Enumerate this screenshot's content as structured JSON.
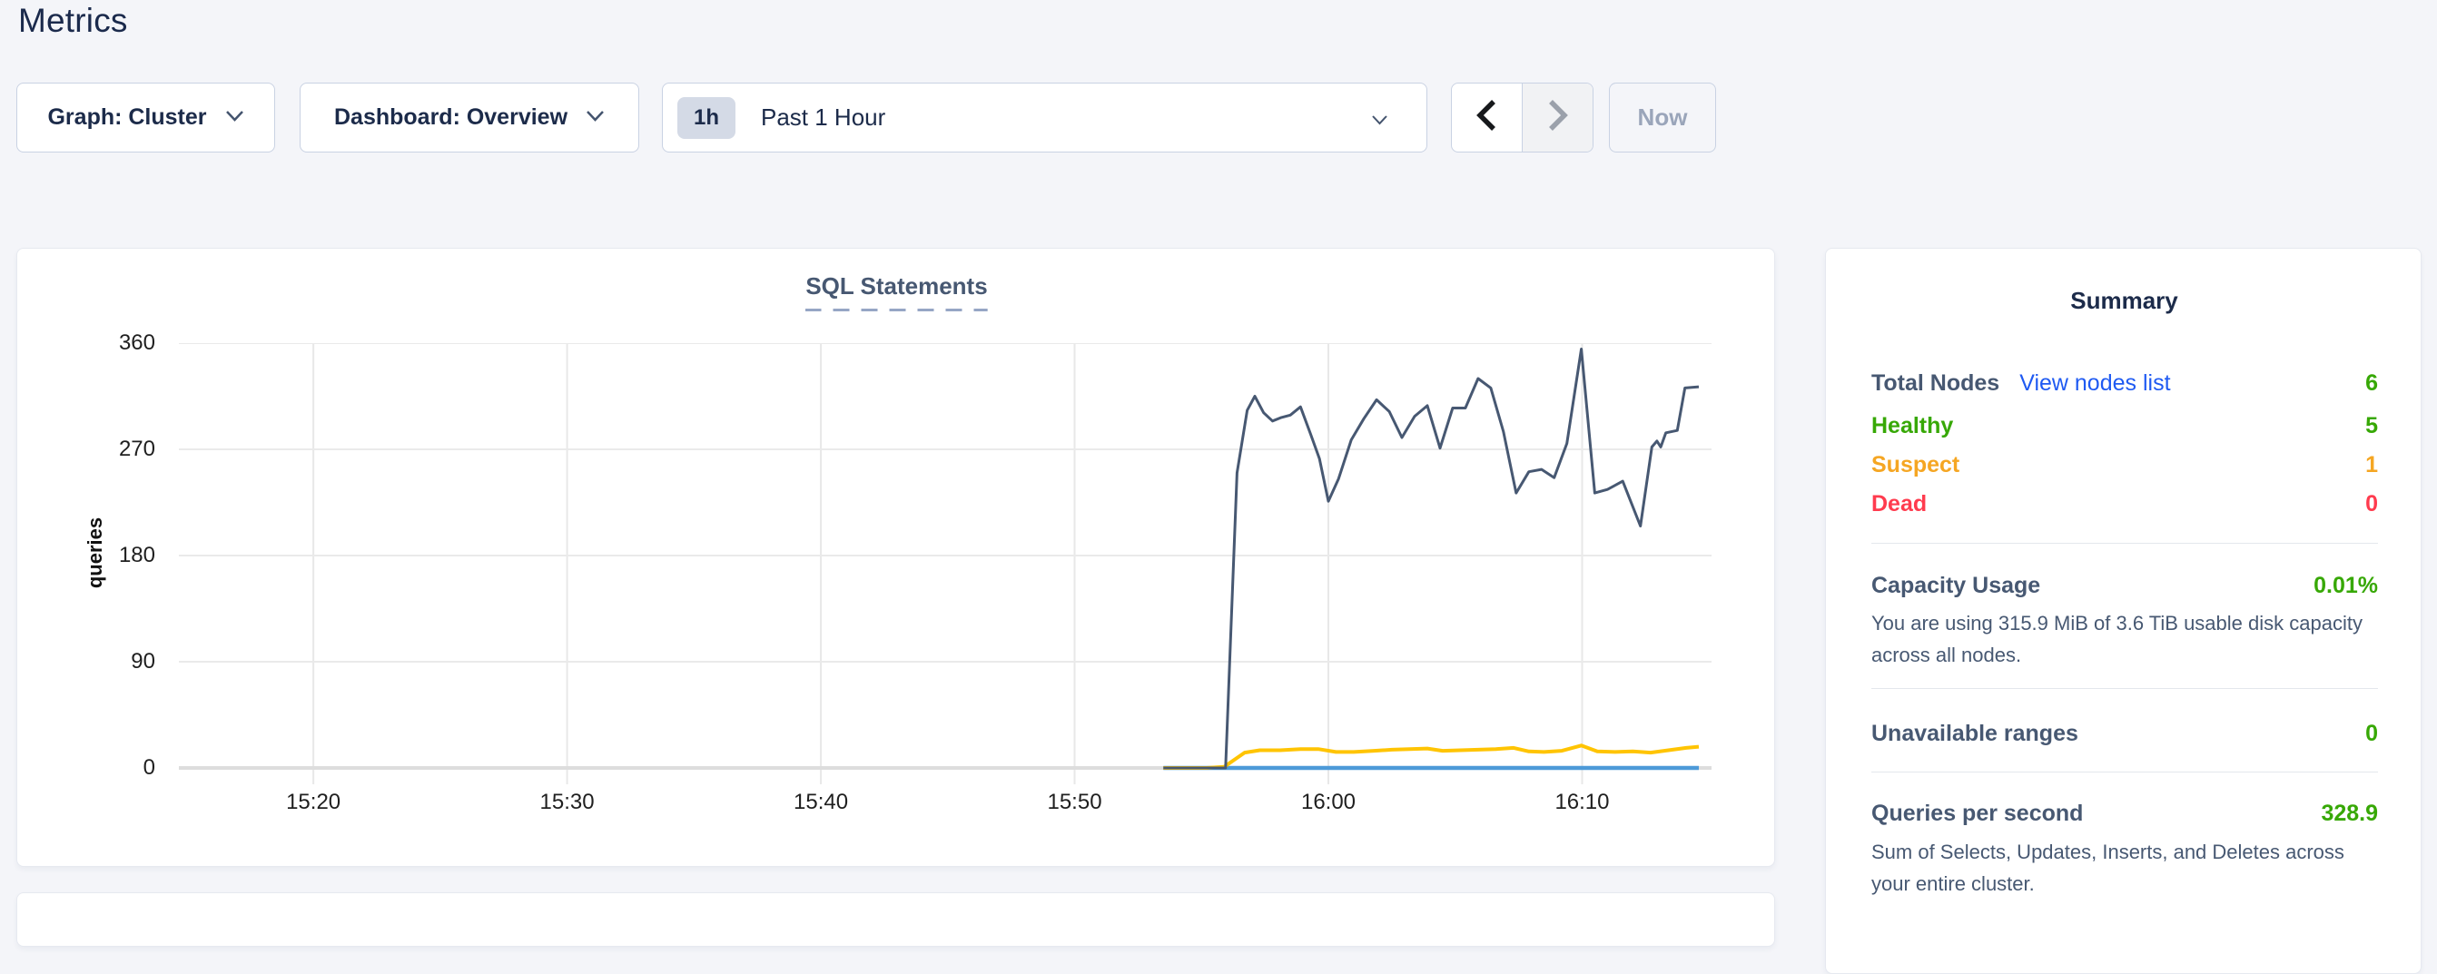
{
  "page": {
    "title": "Metrics"
  },
  "toolbar": {
    "graph_dropdown": {
      "label": "Graph: Cluster"
    },
    "dashboard_dropdown": {
      "label": "Dashboard: Overview"
    },
    "time_window": {
      "badge": "1h",
      "label": "Past 1 Hour"
    },
    "now_button": {
      "label": "Now"
    }
  },
  "chart_data": {
    "type": "line",
    "title": "SQL Statements",
    "ylabel": "queries",
    "xlabel": "",
    "grid": true,
    "legend": "none",
    "ylim": [
      0,
      360
    ],
    "y_ticks": [
      {
        "v": 0,
        "label": "0"
      },
      {
        "v": 90,
        "label": "90"
      },
      {
        "v": 180,
        "label": "180"
      },
      {
        "v": 270,
        "label": "270"
      },
      {
        "v": 360,
        "label": "360"
      }
    ],
    "x_domain_minutes_after_15_00": [
      14.7,
      75.1
    ],
    "x_ticks": [
      {
        "m": 20,
        "label": "15:20"
      },
      {
        "m": 30,
        "label": "15:30"
      },
      {
        "m": 40,
        "label": "15:40"
      },
      {
        "m": 50,
        "label": "15:50"
      },
      {
        "m": 60,
        "label": "16:00"
      },
      {
        "m": 70,
        "label": "16:10"
      }
    ],
    "series": [
      {
        "name": "navy-line",
        "color": "#475872",
        "stroke_width": 3,
        "points": [
          [
            53.5,
            0
          ],
          [
            54.3,
            0
          ],
          [
            55.1,
            0
          ],
          [
            55.95,
            0
          ],
          [
            56.4,
            250
          ],
          [
            56.8,
            303
          ],
          [
            57.1,
            315
          ],
          [
            57.45,
            301
          ],
          [
            57.8,
            294
          ],
          [
            58.15,
            297
          ],
          [
            58.5,
            299
          ],
          [
            58.9,
            306
          ],
          [
            59.3,
            283
          ],
          [
            59.65,
            262
          ],
          [
            60.0,
            226
          ],
          [
            60.4,
            245
          ],
          [
            60.9,
            278
          ],
          [
            61.4,
            296
          ],
          [
            61.9,
            312
          ],
          [
            62.4,
            302
          ],
          [
            62.9,
            280
          ],
          [
            63.4,
            298
          ],
          [
            63.9,
            307
          ],
          [
            64.4,
            271
          ],
          [
            64.9,
            305
          ],
          [
            65.4,
            305
          ],
          [
            65.9,
            330
          ],
          [
            66.4,
            322
          ],
          [
            66.9,
            285
          ],
          [
            67.4,
            233
          ],
          [
            67.9,
            251
          ],
          [
            68.4,
            253
          ],
          [
            68.9,
            246
          ],
          [
            69.4,
            275
          ],
          [
            69.97,
            355
          ],
          [
            70.5,
            233
          ],
          [
            71.0,
            236
          ],
          [
            71.6,
            243
          ],
          [
            72.3,
            205
          ],
          [
            72.75,
            272
          ],
          [
            72.95,
            277
          ],
          [
            73.1,
            272
          ],
          [
            73.3,
            284
          ],
          [
            73.75,
            286
          ],
          [
            74.05,
            322
          ],
          [
            74.6,
            323
          ]
        ]
      },
      {
        "name": "yellow-line",
        "color": "#ffc402",
        "stroke_width": 4,
        "points": [
          [
            53.5,
            0
          ],
          [
            54.3,
            0
          ],
          [
            55.2,
            0
          ],
          [
            55.9,
            1
          ],
          [
            56.3,
            7
          ],
          [
            56.7,
            13
          ],
          [
            57.3,
            15
          ],
          [
            58.1,
            15
          ],
          [
            58.9,
            16
          ],
          [
            59.6,
            16
          ],
          [
            60.3,
            13.5
          ],
          [
            61.0,
            13.5
          ],
          [
            61.8,
            14.5
          ],
          [
            62.5,
            15.5
          ],
          [
            63.2,
            16
          ],
          [
            63.9,
            16.5
          ],
          [
            64.5,
            14.5
          ],
          [
            65.2,
            15
          ],
          [
            65.9,
            15.5
          ],
          [
            66.6,
            16
          ],
          [
            67.3,
            17
          ],
          [
            67.9,
            14
          ],
          [
            68.5,
            13.5
          ],
          [
            69.2,
            14.5
          ],
          [
            69.97,
            19
          ],
          [
            70.6,
            14
          ],
          [
            71.3,
            13.5
          ],
          [
            72.0,
            14
          ],
          [
            72.7,
            13
          ],
          [
            73.4,
            15
          ],
          [
            74.1,
            17
          ],
          [
            74.6,
            18
          ]
        ]
      },
      {
        "name": "blue-line",
        "color": "#4d9ad8",
        "stroke_width": 4.5,
        "points": [
          [
            53.5,
            0
          ],
          [
            58,
            0
          ],
          [
            63,
            0
          ],
          [
            68,
            0
          ],
          [
            74.6,
            0
          ]
        ]
      }
    ]
  },
  "summary": {
    "title": "Summary",
    "nodes": {
      "label": "Total Nodes",
      "link": "View nodes list",
      "value": "6",
      "statuses": [
        {
          "label": "Healthy",
          "value": "5",
          "color": "#37a806"
        },
        {
          "label": "Suspect",
          "value": "1",
          "color": "#f5a623"
        },
        {
          "label": "Dead",
          "value": "0",
          "color": "#ff3b4e"
        }
      ]
    },
    "capacity": {
      "label": "Capacity Usage",
      "value": "0.01%",
      "description": "You are using 315.9 MiB of 3.6 TiB usable disk capacity across all nodes."
    },
    "unavailable": {
      "label": "Unavailable ranges",
      "value": "0"
    },
    "qps": {
      "label": "Queries per second",
      "value": "328.9",
      "description": "Sum of Selects, Updates, Inserts, and Deletes across your entire cluster."
    },
    "accent_colors": {
      "green": "#37a806",
      "orange": "#f5a623",
      "red": "#ff3b4e",
      "link_blue": "#1f5af2"
    }
  }
}
